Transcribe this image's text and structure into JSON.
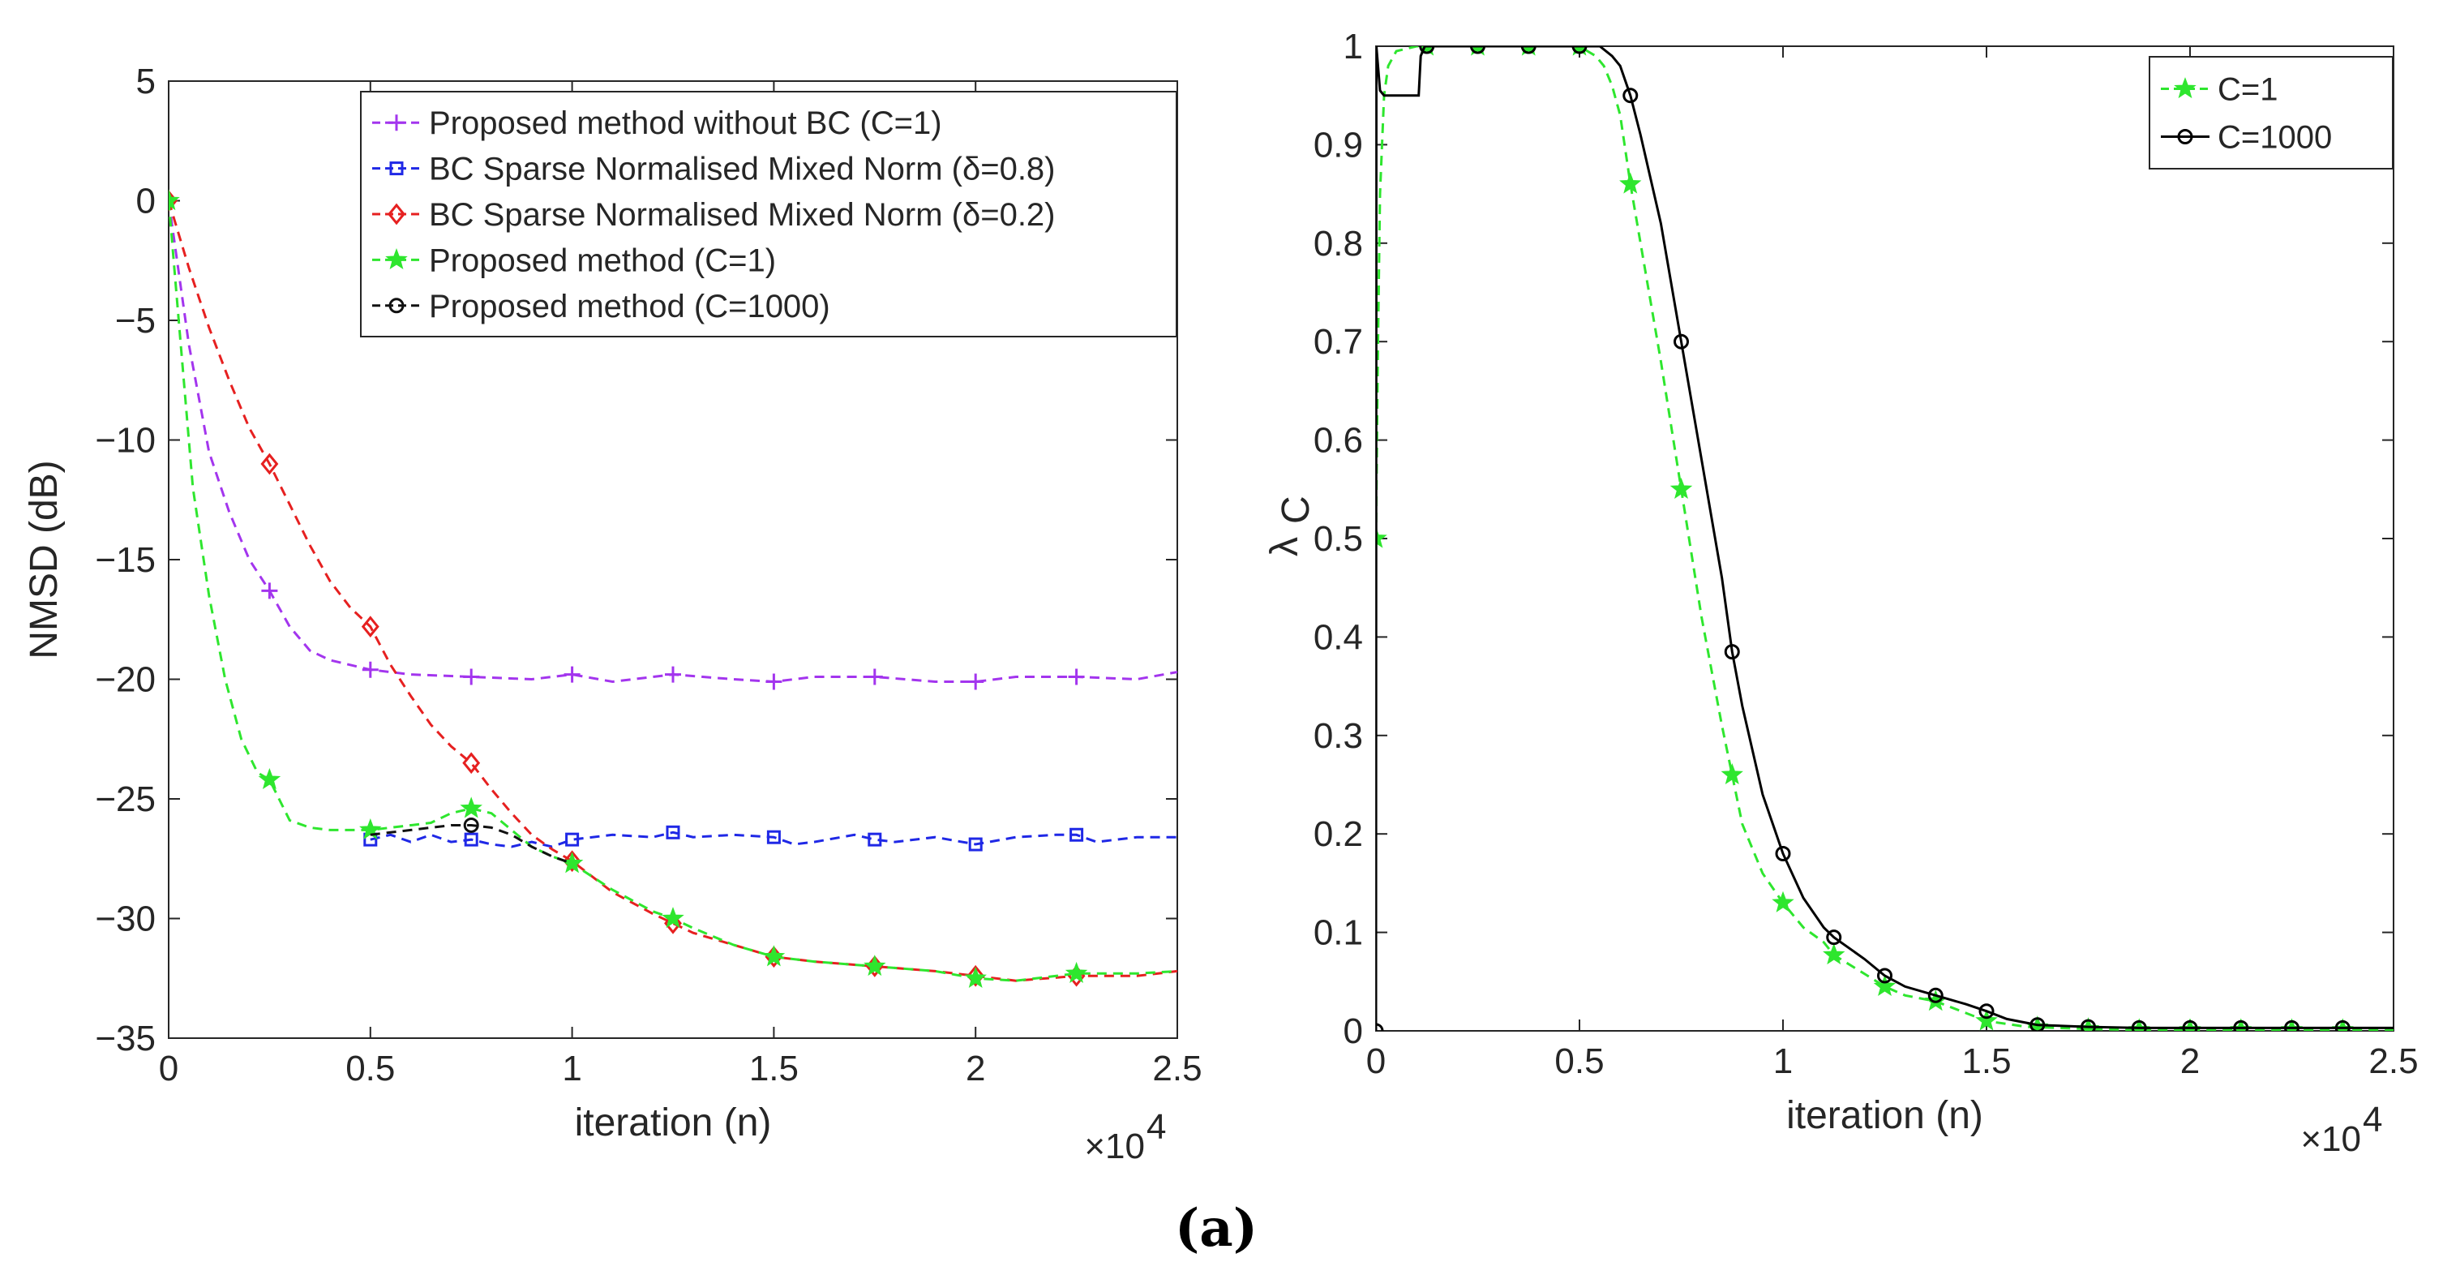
{
  "figure_label": "(a)",
  "chart_data": [
    {
      "type": "line",
      "xlabel": "iteration (n)",
      "ylabel": "NMSD (dB)",
      "x_exponent_label": "×10",
      "x_exponent": "4",
      "xlim": [
        0,
        2.5
      ],
      "ylim": [
        -35,
        5
      ],
      "xticks": [
        0,
        0.5,
        1,
        1.5,
        2,
        2.5
      ],
      "xtick_labels": [
        "0",
        "0.5",
        "1",
        "1.5",
        "2",
        "2.5"
      ],
      "yticks": [
        5,
        0,
        -5,
        -10,
        -15,
        -20,
        -25,
        -30,
        -35
      ],
      "ytick_labels": [
        "5",
        "0",
        "−5",
        "−10",
        "−15",
        "−20",
        "−25",
        "−30",
        "−35"
      ],
      "grid": false,
      "legend_position": "top-right",
      "series": [
        {
          "name": "Proposed method without BC (C=1)",
          "color": "#a335ee",
          "dash": "dashed",
          "marker": "plus",
          "x": [
            0,
            0.05,
            0.1,
            0.15,
            0.2,
            0.25,
            0.3,
            0.35,
            0.4,
            0.5,
            0.6,
            0.75,
            0.9,
            1.0,
            1.1,
            1.25,
            1.4,
            1.5,
            1.6,
            1.75,
            1.9,
            2.0,
            2.1,
            2.25,
            2.4,
            2.5
          ],
          "y": [
            0,
            -6,
            -10.5,
            -13,
            -15,
            -16.3,
            -17.8,
            -18.8,
            -19.2,
            -19.6,
            -19.8,
            -19.9,
            -20.0,
            -19.8,
            -20.1,
            -19.8,
            -20.0,
            -20.1,
            -19.9,
            -19.9,
            -20.1,
            -20.1,
            -19.9,
            -19.9,
            -20.0,
            -19.7
          ],
          "marker_x": [
            0,
            0.25,
            0.5,
            0.75,
            1.0,
            1.25,
            1.5,
            1.75,
            2.0,
            2.25
          ]
        },
        {
          "name": "BC Sparse Normalised Mixed Norm (δ=0.8)",
          "color": "#1f28e6",
          "dash": "dashed",
          "marker": "square",
          "x": [
            0.5,
            0.55,
            0.6,
            0.65,
            0.7,
            0.75,
            0.8,
            0.85,
            0.9,
            0.95,
            1.0,
            1.1,
            1.2,
            1.25,
            1.3,
            1.4,
            1.5,
            1.55,
            1.6,
            1.7,
            1.75,
            1.8,
            1.9,
            2.0,
            2.1,
            2.2,
            2.25,
            2.3,
            2.4,
            2.5
          ],
          "y": [
            -26.7,
            -26.5,
            -26.8,
            -26.5,
            -26.8,
            -26.7,
            -26.9,
            -27.0,
            -26.8,
            -27.0,
            -26.7,
            -26.5,
            -26.6,
            -26.4,
            -26.6,
            -26.5,
            -26.6,
            -26.9,
            -26.8,
            -26.5,
            -26.7,
            -26.8,
            -26.6,
            -26.9,
            -26.6,
            -26.5,
            -26.5,
            -26.8,
            -26.6,
            -26.6
          ],
          "marker_x": [
            0.5,
            0.75,
            1.0,
            1.25,
            1.5,
            1.75,
            2.0,
            2.25
          ]
        },
        {
          "name": "BC Sparse Normalised Mixed Norm (δ=0.2)",
          "color": "#e62020",
          "dash": "dashed",
          "marker": "diamond",
          "x": [
            0,
            0.05,
            0.1,
            0.15,
            0.2,
            0.25,
            0.3,
            0.35,
            0.4,
            0.45,
            0.5,
            0.55,
            0.6,
            0.65,
            0.7,
            0.75,
            0.8,
            0.85,
            0.9,
            0.95,
            1.0,
            1.1,
            1.2,
            1.25,
            1.3,
            1.4,
            1.5,
            1.6,
            1.75,
            1.9,
            2.0,
            2.1,
            2.25,
            2.4,
            2.5
          ],
          "y": [
            0,
            -2.8,
            -5.3,
            -7.5,
            -9.5,
            -11.0,
            -12.7,
            -14.4,
            -15.9,
            -17.0,
            -17.8,
            -19.4,
            -20.7,
            -21.9,
            -22.8,
            -23.5,
            -24.6,
            -25.6,
            -26.5,
            -27.1,
            -27.6,
            -28.9,
            -29.8,
            -30.2,
            -30.6,
            -31.1,
            -31.6,
            -31.8,
            -32.0,
            -32.2,
            -32.4,
            -32.6,
            -32.4,
            -32.4,
            -32.2
          ],
          "marker_x": [
            0,
            0.25,
            0.5,
            0.75,
            1.0,
            1.25,
            1.5,
            1.75,
            2.0,
            2.25
          ]
        },
        {
          "name": "Proposed method (C=1)",
          "color": "#2ee62e",
          "dash": "dashed",
          "marker": "star",
          "x": [
            0,
            0.03,
            0.06,
            0.1,
            0.14,
            0.18,
            0.22,
            0.25,
            0.3,
            0.35,
            0.4,
            0.5,
            0.55,
            0.6,
            0.65,
            0.7,
            0.75,
            0.8,
            0.85,
            0.9,
            0.95,
            1.0,
            1.1,
            1.2,
            1.25,
            1.3,
            1.4,
            1.5,
            1.6,
            1.75,
            1.9,
            2.0,
            2.1,
            2.25,
            2.4,
            2.5
          ],
          "y": [
            0,
            -6,
            -12,
            -16.5,
            -20.0,
            -22.5,
            -23.9,
            -24.2,
            -25.9,
            -26.2,
            -26.3,
            -26.3,
            -26.2,
            -26.1,
            -26.0,
            -25.6,
            -25.4,
            -25.6,
            -26.3,
            -27.0,
            -27.4,
            -27.7,
            -28.8,
            -29.7,
            -30.0,
            -30.4,
            -31.1,
            -31.6,
            -31.8,
            -32.0,
            -32.2,
            -32.5,
            -32.6,
            -32.3,
            -32.3,
            -32.2
          ],
          "marker_x": [
            0,
            0.25,
            0.5,
            0.75,
            1.0,
            1.25,
            1.5,
            1.75,
            2.0,
            2.25
          ]
        },
        {
          "name": "Proposed method (C=1000)",
          "color": "#111111",
          "dash": "dashed",
          "marker": "circle",
          "x": [
            0.5,
            0.55,
            0.6,
            0.65,
            0.7,
            0.75,
            0.8,
            0.85,
            0.9,
            0.95,
            1.0
          ],
          "y": [
            -26.5,
            -26.4,
            -26.3,
            -26.2,
            -26.1,
            -26.1,
            -26.2,
            -26.5,
            -27.0,
            -27.4,
            -27.7
          ],
          "marker_x": [
            0.75
          ]
        }
      ]
    },
    {
      "type": "line",
      "xlabel": "iteration (n)",
      "ylabel": "λ",
      "ylabel_subscript": "C",
      "x_exponent_label": "×10",
      "x_exponent": "4",
      "xlim": [
        0,
        2.5
      ],
      "ylim": [
        0,
        1
      ],
      "xticks": [
        0,
        0.5,
        1,
        1.5,
        2,
        2.5
      ],
      "xtick_labels": [
        "0",
        "0.5",
        "1",
        "1.5",
        "2",
        "2.5"
      ],
      "yticks": [
        0,
        0.1,
        0.2,
        0.3,
        0.4,
        0.5,
        0.6,
        0.7,
        0.8,
        0.9,
        1
      ],
      "ytick_labels": [
        "0",
        "0.1",
        "0.2",
        "0.3",
        "0.4",
        "0.5",
        "0.6",
        "0.7",
        "0.8",
        "0.9",
        "1"
      ],
      "grid": false,
      "legend_position": "top-right",
      "series": [
        {
          "name": "C=1",
          "color": "#2ee62e",
          "dash": "dashed",
          "marker": "star",
          "x": [
            0,
            0.005,
            0.01,
            0.02,
            0.03,
            0.05,
            0.1,
            0.2,
            0.3,
            0.4,
            0.5,
            0.52,
            0.54,
            0.56,
            0.58,
            0.6,
            0.625,
            0.65,
            0.7,
            0.75,
            0.8,
            0.85,
            0.875,
            0.9,
            0.95,
            1.0,
            1.05,
            1.1,
            1.125,
            1.2,
            1.25,
            1.3,
            1.375,
            1.45,
            1.5,
            1.6,
            1.75,
            1.875,
            2.0,
            2.125,
            2.25,
            2.375,
            2.5
          ],
          "y": [
            0.5,
            0.7,
            0.85,
            0.95,
            0.98,
            0.995,
            1.0,
            1.0,
            1.0,
            1.0,
            1.0,
            0.995,
            0.99,
            0.98,
            0.96,
            0.93,
            0.86,
            0.8,
            0.68,
            0.55,
            0.42,
            0.31,
            0.26,
            0.21,
            0.16,
            0.13,
            0.105,
            0.09,
            0.077,
            0.058,
            0.045,
            0.036,
            0.03,
            0.018,
            0.01,
            0.004,
            0.002,
            0.001,
            0.001,
            0.001,
            0.001,
            0.001,
            0.001
          ],
          "marker_x": [
            0,
            0.125,
            0.25,
            0.375,
            0.5,
            0.625,
            0.75,
            0.875,
            1.0,
            1.125,
            1.25,
            1.375,
            1.5,
            1.625,
            1.75,
            1.875,
            2.0,
            2.125,
            2.25,
            2.375
          ]
        },
        {
          "name": "C=1000",
          "color": "#000000",
          "dash": "solid",
          "marker": "circle",
          "x": [
            0,
            0.001,
            0.01,
            0.02,
            0.05,
            0.08,
            0.1,
            0.105,
            0.11,
            0.12,
            0.125,
            0.2,
            0.3,
            0.4,
            0.5,
            0.55,
            0.58,
            0.6,
            0.625,
            0.65,
            0.7,
            0.75,
            0.8,
            0.85,
            0.875,
            0.9,
            0.95,
            1.0,
            1.05,
            1.1,
            1.125,
            1.2,
            1.25,
            1.3,
            1.375,
            1.45,
            1.5,
            1.55,
            1.625,
            1.75,
            1.875,
            2.0,
            2.125,
            2.25,
            2.375,
            2.5
          ],
          "y": [
            0,
            1.0,
            0.955,
            0.95,
            0.95,
            0.95,
            0.95,
            0.95,
            0.99,
            1.0,
            1.0,
            1.0,
            1.0,
            1.0,
            1.0,
            1.0,
            0.99,
            0.98,
            0.95,
            0.91,
            0.82,
            0.7,
            0.58,
            0.46,
            0.385,
            0.33,
            0.24,
            0.18,
            0.135,
            0.105,
            0.095,
            0.073,
            0.056,
            0.045,
            0.036,
            0.027,
            0.02,
            0.012,
            0.006,
            0.004,
            0.003,
            0.003,
            0.003,
            0.003,
            0.003,
            0.003
          ],
          "marker_x": [
            0,
            0.125,
            0.25,
            0.375,
            0.5,
            0.625,
            0.75,
            0.875,
            1.0,
            1.125,
            1.25,
            1.375,
            1.5,
            1.625,
            1.75,
            1.875,
            2.0,
            2.125,
            2.25,
            2.375
          ]
        }
      ]
    }
  ]
}
